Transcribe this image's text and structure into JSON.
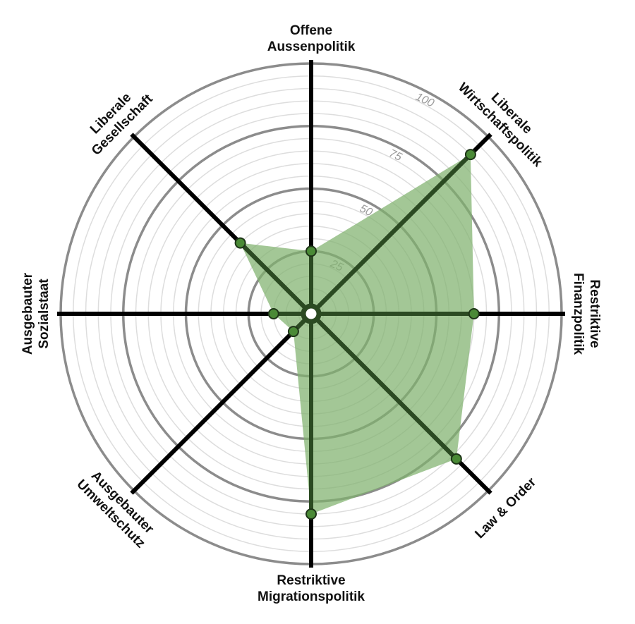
{
  "chart_data": {
    "type": "radar",
    "title": "",
    "axes": [
      {
        "lines": [
          "Offene",
          "Aussenpolitik"
        ]
      },
      {
        "lines": [
          "Liberale",
          "Wirtschaftspolitik"
        ]
      },
      {
        "lines": [
          "Restriktive",
          "Finanzpolitik"
        ]
      },
      {
        "lines": [
          "Law & Order"
        ]
      },
      {
        "lines": [
          "Restriktive",
          "Migrationspolitik"
        ]
      },
      {
        "lines": [
          "Ausgebauter",
          "Umweltschutz"
        ]
      },
      {
        "lines": [
          "Ausgebauter",
          "Sozialstaat"
        ]
      },
      {
        "lines": [
          "Liberale",
          "Gesellschaft"
        ]
      }
    ],
    "values": [
      25,
      90,
      65,
      82,
      80,
      10,
      15,
      40
    ],
    "range": [
      0,
      100
    ],
    "ticks": [
      {
        "value": 25,
        "label": "25"
      },
      {
        "value": 50,
        "label": "50"
      },
      {
        "value": 75,
        "label": "75"
      },
      {
        "value": 100,
        "label": "100"
      }
    ],
    "colors": {
      "fill": "#80b16d",
      "line": "#2b4a22",
      "marker": "#4a8a36",
      "axis": "#000000",
      "ring_major": "#8c8c8c",
      "ring_minor": "#dddddd"
    }
  }
}
